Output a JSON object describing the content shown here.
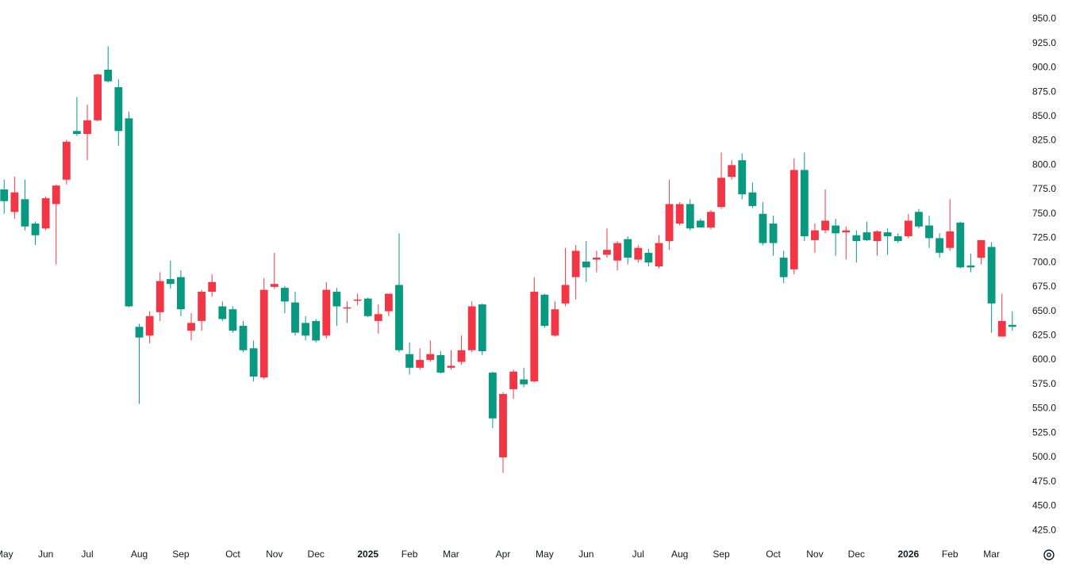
{
  "chart_data": {
    "type": "candlestick",
    "up_color": "#f23645",
    "down_color": "#089981",
    "open": [
      775,
      752,
      765,
      740,
      735,
      760,
      785,
      835,
      832,
      846,
      898,
      880,
      848,
      634,
      625,
      649,
      683,
      685,
      630,
      640,
      670,
      655,
      652,
      635,
      612,
      582,
      675,
      674,
      659,
      638,
      640,
      625,
      670,
      653,
      661,
      663,
      640,
      650,
      677,
      606,
      592,
      600,
      605,
      592,
      598,
      610,
      657,
      587,
      500,
      570,
      580,
      578,
      667,
      625,
      658,
      685,
      701,
      703,
      708,
      702,
      724,
      703,
      710,
      696,
      722,
      740,
      760,
      743,
      736,
      757,
      788,
      805,
      772,
      750,
      740,
      705,
      693,
      795,
      723,
      733,
      738,
      731,
      728,
      731,
      722,
      731,
      727,
      727,
      752,
      738,
      725,
      715,
      741,
      697,
      705,
      716,
      624,
      636
    ],
    "high": [
      785,
      788,
      785,
      742,
      768,
      780,
      826,
      870,
      862,
      894,
      922,
      888,
      855,
      637,
      650,
      690,
      702,
      692,
      648,
      672,
      688,
      660,
      655,
      640,
      620,
      684,
      710,
      676,
      670,
      645,
      642,
      680,
      674,
      660,
      668,
      664,
      657,
      668,
      730,
      618,
      612,
      620,
      609,
      610,
      625,
      660,
      658,
      588,
      567,
      590,
      592,
      685,
      668,
      660,
      715,
      718,
      722,
      712,
      735,
      722,
      727,
      718,
      714,
      728,
      785,
      762,
      765,
      745,
      754,
      813,
      805,
      812,
      782,
      762,
      748,
      712,
      807,
      813,
      740,
      775,
      745,
      737,
      733,
      742,
      733,
      735,
      730,
      750,
      755,
      748,
      730,
      765,
      742,
      709,
      723,
      721,
      668,
      650
    ],
    "low": [
      750,
      745,
      733,
      718,
      733,
      698,
      780,
      830,
      805,
      845,
      885,
      820,
      654,
      555,
      617,
      640,
      673,
      645,
      620,
      630,
      665,
      640,
      628,
      608,
      578,
      580,
      673,
      648,
      625,
      620,
      618,
      622,
      635,
      638,
      656,
      644,
      627,
      645,
      608,
      585,
      590,
      598,
      586,
      590,
      595,
      608,
      605,
      530,
      484,
      560,
      572,
      577,
      633,
      624,
      655,
      662,
      680,
      690,
      705,
      692,
      698,
      700,
      696,
      694,
      713,
      738,
      733,
      736,
      734,
      755,
      785,
      765,
      756,
      718,
      707,
      679,
      688,
      722,
      710,
      730,
      707,
      703,
      700,
      722,
      707,
      708,
      720,
      725,
      735,
      715,
      705,
      712,
      694,
      690,
      698,
      628,
      624,
      630
    ],
    "close": [
      763,
      772,
      737,
      728,
      766,
      779,
      824,
      832,
      846,
      893,
      886,
      835,
      655,
      623,
      645,
      681,
      678,
      652,
      638,
      670,
      680,
      642,
      630,
      610,
      583,
      672,
      678,
      660,
      628,
      625,
      620,
      672,
      655,
      654,
      662,
      645,
      647,
      668,
      610,
      592,
      600,
      606,
      587,
      594,
      610,
      655,
      609,
      540,
      565,
      588,
      575,
      670,
      635,
      652,
      677,
      712,
      695,
      705,
      713,
      720,
      705,
      715,
      700,
      720,
      760,
      760,
      735,
      736,
      752,
      787,
      800,
      770,
      758,
      720,
      720,
      685,
      795,
      727,
      733,
      743,
      730,
      733,
      722,
      723,
      732,
      727,
      722,
      743,
      737,
      725,
      710,
      732,
      695,
      695,
      723,
      658,
      640,
      634
    ],
    "xlim": [
      -0.4,
      97.7
    ],
    "xticks": [
      {
        "value": 0,
        "label": "May"
      },
      {
        "value": 4,
        "label": "Jun"
      },
      {
        "value": 8,
        "label": "Jul"
      },
      {
        "value": 13,
        "label": "Aug"
      },
      {
        "value": 17,
        "label": "Sep"
      },
      {
        "value": 22,
        "label": "Oct"
      },
      {
        "value": 26,
        "label": "Nov"
      },
      {
        "value": 30,
        "label": "Dec"
      },
      {
        "value": 35,
        "label": "2025"
      },
      {
        "value": 39,
        "label": "Feb"
      },
      {
        "value": 43,
        "label": "Mar"
      },
      {
        "value": 48,
        "label": "Apr"
      },
      {
        "value": 52,
        "label": "May"
      },
      {
        "value": 56,
        "label": "Jun"
      },
      {
        "value": 61,
        "label": "Jul"
      },
      {
        "value": 65,
        "label": "Aug"
      },
      {
        "value": 69,
        "label": "Sep"
      },
      {
        "value": 74,
        "label": "Oct"
      },
      {
        "value": 78,
        "label": "Nov"
      },
      {
        "value": 82,
        "label": "Dec"
      },
      {
        "value": 87,
        "label": "2026"
      },
      {
        "value": 91,
        "label": "Feb"
      },
      {
        "value": 95,
        "label": "Mar"
      }
    ],
    "ylim": [
      408,
      969.5
    ],
    "yticks": [
      {
        "value": 425,
        "label": "425.0"
      },
      {
        "value": 450,
        "label": "450.0"
      },
      {
        "value": 475,
        "label": "475.0"
      },
      {
        "value": 500,
        "label": "500.0"
      },
      {
        "value": 525,
        "label": "525.0"
      },
      {
        "value": 550,
        "label": "550.0"
      },
      {
        "value": 575,
        "label": "575.0"
      },
      {
        "value": 600,
        "label": "600.0"
      },
      {
        "value": 625,
        "label": "625.0"
      },
      {
        "value": 650,
        "label": "650.0"
      },
      {
        "value": 675,
        "label": "675.0"
      },
      {
        "value": 700,
        "label": "700.0"
      },
      {
        "value": 725,
        "label": "725.0"
      },
      {
        "value": 750,
        "label": "750.0"
      },
      {
        "value": 775,
        "label": "775.0"
      },
      {
        "value": 800,
        "label": "800.0"
      },
      {
        "value": 825,
        "label": "825.0"
      },
      {
        "value": 850,
        "label": "850.0"
      },
      {
        "value": 875,
        "label": "875.0"
      },
      {
        "value": 900,
        "label": "900.0"
      },
      {
        "value": 925,
        "label": "925.0"
      },
      {
        "value": 950,
        "label": "950.0"
      }
    ]
  }
}
